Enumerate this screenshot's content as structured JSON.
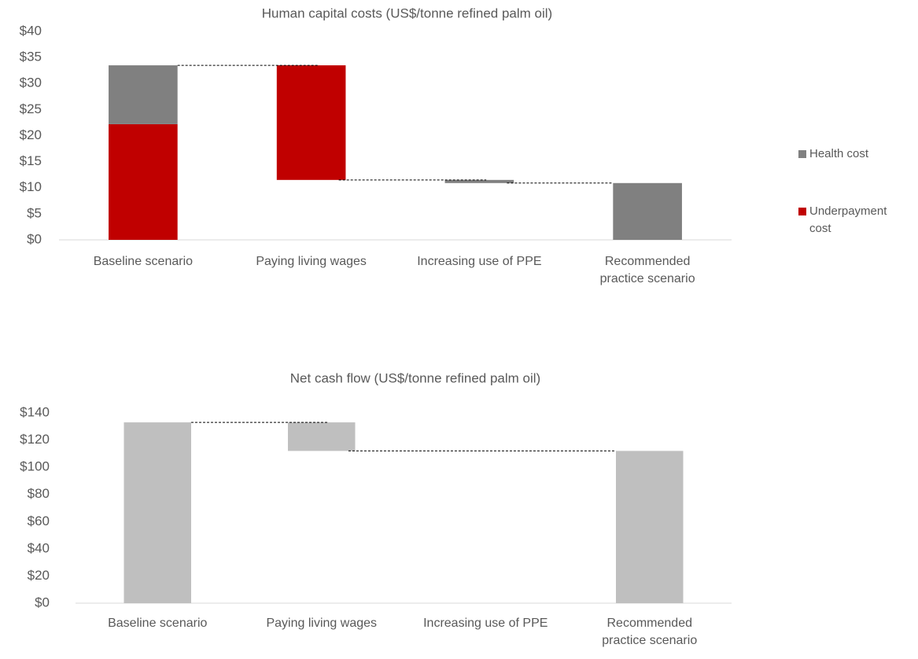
{
  "chart_data": [
    {
      "type": "waterfall",
      "title": "Human capital costs (US$/tonne refined palm oil)",
      "categories": [
        "Baseline scenario",
        "Paying living wages",
        "Increasing use of PPE",
        "Recommended practice scenario"
      ],
      "measure": [
        "absolute",
        "relative",
        "relative",
        "absolute"
      ],
      "series": [
        {
          "name": "Health cost",
          "color": "#808080",
          "values": [
            11.3,
            null,
            -0.6,
            10.9
          ]
        },
        {
          "name": "Underpayment cost",
          "color": "#c00000",
          "values": [
            22.2,
            -22.0,
            null,
            null
          ]
        }
      ],
      "ylim": [
        0,
        40
      ],
      "yticks": [
        {
          "value": 0,
          "label": "$0"
        },
        {
          "value": 5,
          "label": "$5"
        },
        {
          "value": 10,
          "label": "$10"
        },
        {
          "value": 15,
          "label": "$15"
        },
        {
          "value": 20,
          "label": "$20"
        },
        {
          "value": 25,
          "label": "$25"
        },
        {
          "value": 30,
          "label": "$30"
        },
        {
          "value": 35,
          "label": "$35"
        },
        {
          "value": 40,
          "label": "$40"
        }
      ],
      "legend": "right",
      "grid": false
    },
    {
      "type": "waterfall",
      "title": "Net cash flow (US$/tonne refined palm oil)",
      "categories": [
        "Baseline scenario",
        "Paying living wages",
        "Increasing use of PPE",
        "Recommended practice scenario"
      ],
      "measure": [
        "absolute",
        "relative",
        "relative",
        "absolute"
      ],
      "series": [
        {
          "name": "Net cash flow",
          "color": "#bfbfbf",
          "values": [
            133,
            -21,
            null,
            112
          ]
        }
      ],
      "ylim": [
        0,
        140
      ],
      "yticks": [
        {
          "value": 0,
          "label": "$0"
        },
        {
          "value": 20,
          "label": "$20"
        },
        {
          "value": 40,
          "label": "$40"
        },
        {
          "value": 60,
          "label": "$60"
        },
        {
          "value": 80,
          "label": "$80"
        },
        {
          "value": 100,
          "label": "$100"
        },
        {
          "value": 120,
          "label": "$120"
        },
        {
          "value": 140,
          "label": "$140"
        }
      ],
      "legend": null,
      "grid": false
    }
  ]
}
